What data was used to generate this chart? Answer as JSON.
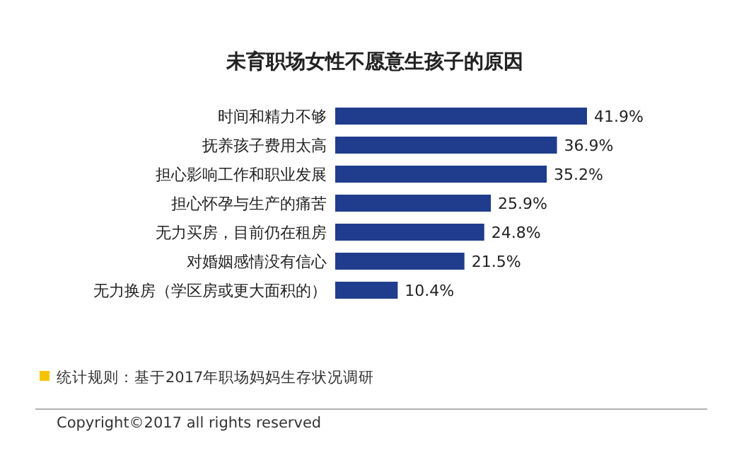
{
  "chart_data": {
    "type": "bar",
    "orientation": "horizontal",
    "title": "未育职场女性不愿意生孩子的原因",
    "categories": [
      "时间和精力不够",
      "抚养孩子费用太高",
      "担心影响工作和职业发展",
      "担心怀孕与生产的痛苦",
      "无力买房，目前仍在租房",
      "对婚姻感情没有信心",
      "无力换房（学区房或更大面积的）"
    ],
    "values": [
      41.9,
      36.9,
      35.2,
      25.9,
      24.8,
      21.5,
      10.4
    ],
    "color": "#1f3d8c",
    "value_labels": [
      "41.9%",
      "36.9%",
      "35.2%",
      "25.9%",
      "24.8%",
      "21.5%",
      "10.4%"
    ],
    "annotations": [
      "统计规则：基于2017年职场妈妈生存状况调研",
      "Copyright©2017 all rights reserved"
    ]
  }
}
